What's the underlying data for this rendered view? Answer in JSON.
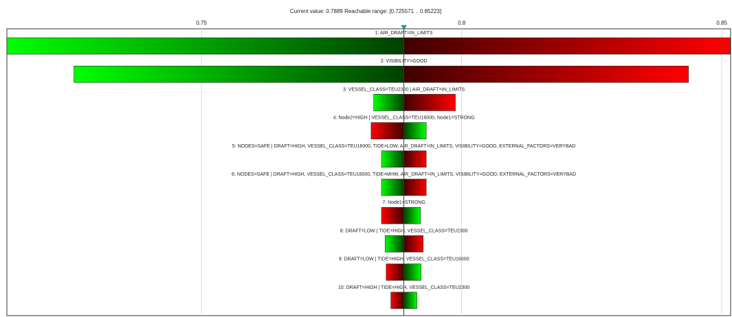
{
  "header": {
    "status_text": "Current value: 0.7889  Reachable range: [0.725571 .. 0.85223]"
  },
  "chart_data": {
    "type": "bar",
    "subtype": "tornado",
    "title": "",
    "xlabel": "",
    "ylabel": "",
    "current_value": 0.7889,
    "reachable_range": [
      0.725571,
      0.85223
    ],
    "xlim": [
      0.7126,
      0.8517
    ],
    "x_ticks": [
      {
        "value": 0.75,
        "label": "0.75"
      },
      {
        "value": 0.8,
        "label": "0.8"
      },
      {
        "value": 0.85,
        "label": "0.85"
      }
    ],
    "grid": true,
    "colors": {
      "increase": "#ff0000",
      "decrease": "#00ff00",
      "dark_green": "#004000",
      "dark_red": "#400000",
      "axis": "#333333",
      "grid": "#d9d9d9",
      "marker": "#20a0a0"
    },
    "bars": [
      {
        "label": "1: AIR_DRAFT=IN_LIMITS",
        "left": 0.7126,
        "right": 0.8516,
        "left_color": "green",
        "right_color": "red"
      },
      {
        "label": "2: VISIBILITY=GOOD",
        "left": 0.7255,
        "right": 0.8436,
        "left_color": "green",
        "right_color": "red"
      },
      {
        "label": "3: VESSEL_CLASS=TEU2300 | AIR_DRAFT=IN_LIMITS",
        "left": 0.7831,
        "right": 0.7988,
        "left_color": "green",
        "right_color": "red"
      },
      {
        "label": "4: Node2=HIGH | VESSEL_CLASS=TEU16000, Node1=STRONG",
        "left": 0.7826,
        "right": 0.7932,
        "left_color": "red",
        "right_color": "green"
      },
      {
        "label": "5: NODES=SAFE | DRAFT=HIGH, VESSEL_CLASS=TEU16000, TIDE=LOW, AIR_DRAFT=IN_LIMITS, VISIBILITY=GOOD, EXTERNAL_FACTORS=VERYBAD",
        "left": 0.7846,
        "right": 0.7932,
        "left_color": "green",
        "right_color": "red"
      },
      {
        "label": "6: NODES=SAFE | DRAFT=HIGH, VESSEL_CLASS=TEU16000, TIDE=MHW, AIR_DRAFT=IN_LIMITS, VISIBILITY=GOOD, EXTERNAL_FACTORS=VERYBAD",
        "left": 0.7846,
        "right": 0.7932,
        "left_color": "green",
        "right_color": "red"
      },
      {
        "label": "7: Node1=STRONG",
        "left": 0.7846,
        "right": 0.7921,
        "left_color": "red",
        "right_color": "green"
      },
      {
        "label": "8: DRAFT=LOW | TIDE=HIGH, VESSEL_CLASS=TEU2300",
        "left": 0.7853,
        "right": 0.7926,
        "left_color": "green",
        "right_color": "red"
      },
      {
        "label": "9: DRAFT=LOW | TIDE=HIGH, VESSEL_CLASS=TEU16000",
        "left": 0.7855,
        "right": 0.7922,
        "left_color": "red",
        "right_color": "green"
      },
      {
        "label": "10: DRAFT=HIGH | TIDE=HIGH, VESSEL_CLASS=TEU2300",
        "left": 0.7864,
        "right": 0.7914,
        "left_color": "red",
        "right_color": "green"
      }
    ]
  }
}
